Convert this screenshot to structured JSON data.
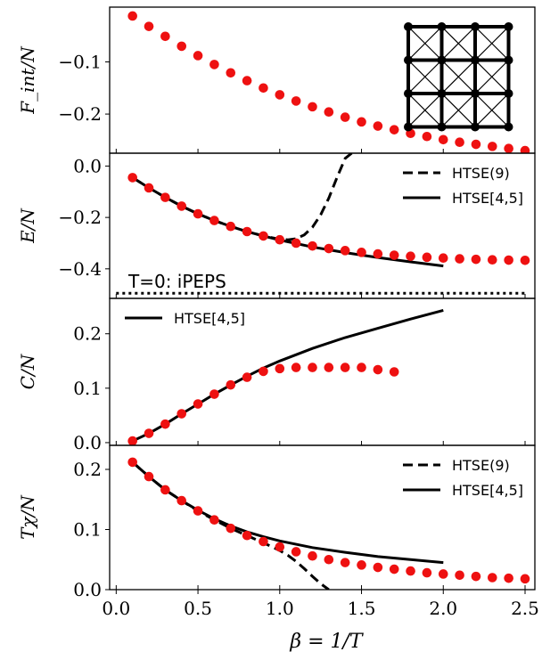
{
  "colors": {
    "points": "#ee1111",
    "lines": "#000000",
    "axes": "#000000"
  },
  "x_axis": {
    "label": "β = 1/T",
    "ticks": [
      0.0,
      0.5,
      1.0,
      1.5,
      2.0,
      2.5
    ],
    "tick_labels": [
      "0.0",
      "0.5",
      "1.0",
      "1.5",
      "2.0",
      "2.5"
    ],
    "range": [
      -0.04,
      2.56
    ]
  },
  "chart_data": [
    {
      "type": "scatter",
      "id": "free-energy",
      "ylabel": "F_int/N",
      "ylim": [
        -0.275,
        0.005
      ],
      "yticks": [
        -0.1,
        -0.2
      ],
      "ytick_labels": [
        "−0.1",
        "−0.2"
      ],
      "inset": "square lattice with crossed plaquettes (4x4 sites)",
      "series": [
        {
          "kind": "points",
          "x": [
            0.1,
            0.2,
            0.3,
            0.4,
            0.5,
            0.6,
            0.7,
            0.8,
            0.9,
            1.0,
            1.1,
            1.2,
            1.3,
            1.4,
            1.5,
            1.6,
            1.7,
            1.8,
            1.9,
            2.0,
            2.1,
            2.2,
            2.3,
            2.4,
            2.5
          ],
          "y": [
            -0.012,
            -0.032,
            -0.051,
            -0.07,
            -0.088,
            -0.105,
            -0.121,
            -0.136,
            -0.15,
            -0.163,
            -0.175,
            -0.186,
            -0.196,
            -0.206,
            -0.215,
            -0.223,
            -0.23,
            -0.237,
            -0.243,
            -0.249,
            -0.254,
            -0.258,
            -0.262,
            -0.266,
            -0.27
          ]
        }
      ]
    },
    {
      "type": "line",
      "id": "energy",
      "ylabel": "E/N",
      "ylim": [
        -0.515,
        0.05
      ],
      "yticks": [
        0.0,
        -0.2,
        -0.4
      ],
      "ytick_labels": [
        "0.0",
        "−0.2",
        "−0.4"
      ],
      "annotation": "T=0: iPEPS",
      "legend": [
        "HTSE(9)",
        "HTSE[4,5]"
      ],
      "series": [
        {
          "kind": "points",
          "x": [
            0.1,
            0.2,
            0.3,
            0.4,
            0.5,
            0.6,
            0.7,
            0.8,
            0.9,
            1.0,
            1.1,
            1.2,
            1.3,
            1.4,
            1.5,
            1.6,
            1.7,
            1.8,
            1.9,
            2.0,
            2.1,
            2.2,
            2.3,
            2.4,
            2.5
          ],
          "y": [
            -0.045,
            -0.085,
            -0.122,
            -0.156,
            -0.186,
            -0.212,
            -0.235,
            -0.255,
            -0.272,
            -0.287,
            -0.3,
            -0.311,
            -0.321,
            -0.329,
            -0.336,
            -0.342,
            -0.347,
            -0.351,
            -0.355,
            -0.358,
            -0.361,
            -0.363,
            -0.365,
            -0.366,
            -0.367
          ]
        },
        {
          "kind": "dashed",
          "name": "HTSE(9)",
          "x": [
            0.1,
            0.2,
            0.3,
            0.4,
            0.5,
            0.6,
            0.7,
            0.8,
            0.9,
            1.0,
            1.05,
            1.1,
            1.15,
            1.2,
            1.25,
            1.3,
            1.35,
            1.4,
            1.44
          ],
          "y": [
            -0.045,
            -0.085,
            -0.122,
            -0.156,
            -0.186,
            -0.212,
            -0.235,
            -0.255,
            -0.272,
            -0.285,
            -0.287,
            -0.283,
            -0.268,
            -0.238,
            -0.19,
            -0.125,
            -0.045,
            0.03,
            0.05
          ]
        },
        {
          "kind": "solid",
          "name": "HTSE[4,5]",
          "x": [
            0.1,
            0.2,
            0.3,
            0.4,
            0.5,
            0.6,
            0.7,
            0.8,
            0.9,
            1.0,
            1.2,
            1.4,
            1.6,
            1.8,
            2.0
          ],
          "y": [
            -0.045,
            -0.085,
            -0.122,
            -0.156,
            -0.186,
            -0.212,
            -0.235,
            -0.255,
            -0.272,
            -0.288,
            -0.315,
            -0.337,
            -0.356,
            -0.373,
            -0.389
          ]
        },
        {
          "kind": "dotted",
          "name": "T=0: iPEPS",
          "x": [
            0.0,
            2.5
          ],
          "y": [
            -0.495,
            -0.495
          ]
        }
      ]
    },
    {
      "type": "line",
      "id": "specific-heat",
      "ylabel": "C/N",
      "ylim": [
        -0.005,
        0.265
      ],
      "yticks": [
        0.0,
        0.1,
        0.2
      ],
      "ytick_labels": [
        "0.0",
        "0.1",
        "0.2"
      ],
      "legend": [
        "HTSE[4,5]"
      ],
      "series": [
        {
          "kind": "points",
          "x": [
            0.1,
            0.2,
            0.3,
            0.4,
            0.5,
            0.6,
            0.7,
            0.8,
            0.9,
            1.0,
            1.1,
            1.2,
            1.3,
            1.4,
            1.5,
            1.6,
            1.7
          ],
          "y": [
            0.003,
            0.017,
            0.034,
            0.053,
            0.071,
            0.089,
            0.106,
            0.12,
            0.131,
            0.136,
            0.138,
            0.138,
            0.138,
            0.138,
            0.138,
            0.134,
            0.13
          ]
        },
        {
          "kind": "solid",
          "name": "HTSE[4,5]",
          "x": [
            0.1,
            0.2,
            0.3,
            0.4,
            0.5,
            0.6,
            0.7,
            0.8,
            0.9,
            1.0,
            1.2,
            1.4,
            1.6,
            1.8,
            2.0
          ],
          "y": [
            0.003,
            0.017,
            0.034,
            0.053,
            0.071,
            0.089,
            0.106,
            0.122,
            0.137,
            0.15,
            0.173,
            0.193,
            0.21,
            0.227,
            0.243
          ]
        }
      ]
    },
    {
      "type": "line",
      "id": "susceptibility",
      "ylabel": "Tχ/N",
      "ylim": [
        0.0,
        0.24
      ],
      "yticks": [
        0.0,
        0.1,
        0.2
      ],
      "ytick_labels": [
        "0.0",
        "0.1",
        "0.2"
      ],
      "legend": [
        "HTSE(9)",
        "HTSE[4,5]"
      ],
      "series": [
        {
          "kind": "points",
          "x": [
            0.1,
            0.2,
            0.3,
            0.4,
            0.5,
            0.6,
            0.7,
            0.8,
            0.9,
            1.0,
            1.1,
            1.2,
            1.3,
            1.4,
            1.5,
            1.6,
            1.7,
            1.8,
            1.9,
            2.0,
            2.1,
            2.2,
            2.3,
            2.4,
            2.5
          ],
          "y": [
            0.212,
            0.188,
            0.166,
            0.148,
            0.131,
            0.116,
            0.102,
            0.09,
            0.08,
            0.071,
            0.063,
            0.056,
            0.05,
            0.045,
            0.041,
            0.037,
            0.034,
            0.031,
            0.028,
            0.026,
            0.024,
            0.022,
            0.02,
            0.019,
            0.018
          ]
        },
        {
          "kind": "dashed",
          "name": "HTSE(9)",
          "x": [
            0.1,
            0.2,
            0.3,
            0.4,
            0.5,
            0.6,
            0.7,
            0.8,
            0.9,
            1.0,
            1.05,
            1.1,
            1.15,
            1.2,
            1.25,
            1.3
          ],
          "y": [
            0.212,
            0.188,
            0.166,
            0.148,
            0.131,
            0.116,
            0.102,
            0.09,
            0.078,
            0.065,
            0.057,
            0.047,
            0.035,
            0.022,
            0.01,
            0.0
          ]
        },
        {
          "kind": "solid",
          "name": "HTSE[4,5]",
          "x": [
            0.1,
            0.2,
            0.3,
            0.4,
            0.5,
            0.6,
            0.7,
            0.8,
            0.9,
            1.0,
            1.2,
            1.4,
            1.6,
            1.8,
            2.0
          ],
          "y": [
            0.212,
            0.188,
            0.166,
            0.148,
            0.132,
            0.118,
            0.106,
            0.096,
            0.088,
            0.081,
            0.07,
            0.062,
            0.055,
            0.05,
            0.045
          ]
        }
      ]
    }
  ]
}
